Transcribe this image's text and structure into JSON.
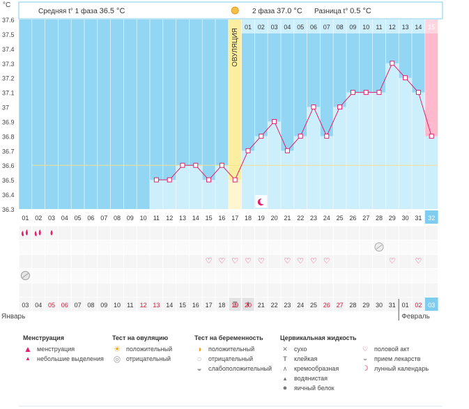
{
  "header": {
    "deg_unit": "°C",
    "phase1_label": "Средняя t° 1 фаза",
    "phase1_value": "36.5 °C",
    "phase2_label": "2 фаза",
    "phase2_value": "37.0 °C",
    "diff_label": "Разница t°",
    "diff_value": "0.5 °C"
  },
  "ovulation_label": "ОВУЛЯЦИЯ",
  "chart_data": {
    "type": "line",
    "ylim": [
      36.3,
      37.6
    ],
    "yticks": [
      "37.6",
      "37.5",
      "37.4",
      "37.3",
      "37.2",
      "37.1",
      "37",
      "36.9",
      "36.8",
      "36.7",
      "36.6",
      "36.5",
      "36.4",
      "36.3"
    ],
    "cycle_days": [
      "01",
      "02",
      "03",
      "04",
      "05",
      "06",
      "07",
      "08",
      "09",
      "10",
      "11",
      "12",
      "13",
      "14",
      "15",
      "16",
      "17",
      "18",
      "19",
      "20",
      "21",
      "22",
      "23",
      "24",
      "25",
      "26",
      "27",
      "28",
      "29",
      "30",
      "31",
      "32"
    ],
    "dpo_labels": [
      "01",
      "02",
      "03",
      "04",
      "05",
      "06",
      "07",
      "08",
      "09",
      "10",
      "11",
      "12",
      "13",
      "14",
      "15"
    ],
    "temperatures": [
      null,
      null,
      null,
      null,
      null,
      null,
      null,
      null,
      null,
      null,
      36.5,
      36.5,
      36.6,
      36.6,
      36.5,
      36.6,
      36.5,
      36.7,
      36.8,
      36.9,
      36.7,
      36.8,
      37.0,
      36.8,
      37.0,
      37.1,
      37.1,
      37.1,
      37.3,
      37.2,
      37.1,
      36.8
    ],
    "coverline": 36.6,
    "ovulation_day": 17,
    "dates": [
      "03",
      "04",
      "05",
      "06",
      "07",
      "08",
      "09",
      "10",
      "11",
      "12",
      "13",
      "14",
      "15",
      "16",
      "17",
      "18",
      "19",
      "20",
      "21",
      "22",
      "23",
      "24",
      "25",
      "26",
      "27",
      "28",
      "29",
      "30",
      "31",
      "01",
      "02",
      "03"
    ],
    "red_dates": [
      2,
      3,
      9,
      10,
      16,
      17,
      23,
      24,
      30,
      31
    ],
    "month_jan": "Январь",
    "month_feb": "Февраль",
    "menstruation": {
      "1": "heavy",
      "2": "heavy",
      "3": "light"
    },
    "intercourse_days": [
      15,
      16,
      17,
      18,
      19,
      21,
      22,
      23,
      24,
      29,
      31
    ],
    "medication_days": [
      28
    ],
    "ovulation_test_neg_days": [
      1
    ],
    "cervical": {
      "17": "creamy",
      "18": "watery"
    },
    "lunar_day": 19
  },
  "legend": {
    "menstruation": {
      "title": "Менструация",
      "items": [
        "менструация",
        "небольшие выделения"
      ]
    },
    "ovulation_test": {
      "title": "Тест на овуляцию",
      "items": [
        "положительный",
        "отрицательный"
      ]
    },
    "pregnancy_test": {
      "title": "Тест на беременность",
      "items": [
        "положительный",
        "отрицательный",
        "слабоположительный"
      ]
    },
    "cervical": {
      "title": "Цервикальная жидкость",
      "items": [
        "сухо",
        "клейкая",
        "кремообразная",
        "водянистая",
        "яичный белок"
      ]
    },
    "other": {
      "items": [
        "половой акт",
        "прием лекарств",
        "лунный календарь"
      ]
    }
  }
}
